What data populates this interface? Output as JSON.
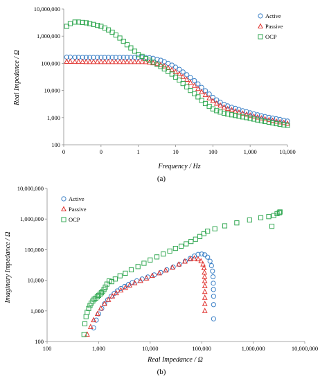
{
  "figure": {
    "caption_a": "(a)",
    "caption_b": "(b)"
  },
  "series_styles": [
    {
      "name": "Active",
      "marker": "circle",
      "color": "#3a7fc6"
    },
    {
      "name": "Passive",
      "marker": "triangle",
      "color": "#e0322e"
    },
    {
      "name": "OCP",
      "marker": "square",
      "color": "#33a853"
    }
  ],
  "chart_data": [
    {
      "type": "scatter",
      "xlabel": "Frequency / Hz",
      "ylabel": "Real Impedance / Ω",
      "x_scale": "log",
      "y_scale": "log",
      "xlim": [
        0.01,
        10000
      ],
      "ylim": [
        100,
        10000000
      ],
      "x_ticks": [
        "0",
        "0",
        "1",
        "10",
        "100",
        "1,000",
        "10,000"
      ],
      "y_ticks": [
        "100",
        "1,000",
        "10,000",
        "100,000",
        "1,000,000",
        "10,000,000"
      ],
      "legend_position": "top-right",
      "grid": false,
      "series": [
        {
          "name": "Active",
          "x": [
            0.012,
            0.015,
            0.02,
            0.025,
            0.032,
            0.04,
            0.05,
            0.063,
            0.08,
            0.1,
            0.126,
            0.158,
            0.2,
            0.25,
            0.32,
            0.4,
            0.5,
            0.63,
            0.8,
            1.0,
            1.26,
            1.58,
            2,
            2.5,
            3.2,
            4,
            5,
            6.3,
            8,
            10,
            12.6,
            15.8,
            20,
            25,
            32,
            40,
            50,
            63,
            80,
            100,
            126,
            158,
            200,
            250,
            320,
            400,
            500,
            630,
            800,
            1000,
            1260,
            1580,
            2000,
            2500,
            3200,
            4000,
            5000,
            6300,
            8000,
            10000
          ],
          "y": [
            170000,
            170000,
            168000,
            168000,
            167000,
            167000,
            166000,
            166000,
            166000,
            166000,
            166000,
            166000,
            166000,
            166000,
            166000,
            166000,
            166000,
            166000,
            166000,
            166000,
            166000,
            165000,
            160000,
            152000,
            142000,
            130000,
            115000,
            100000,
            86000,
            72000,
            60000,
            48000,
            38000,
            30000,
            23000,
            17500,
            13000,
            9800,
            7400,
            5600,
            4500,
            3700,
            3100,
            2700,
            2400,
            2200,
            2000,
            1800,
            1650,
            1500,
            1380,
            1270,
            1180,
            1100,
            1030,
            970,
            910,
            860,
            800,
            750
          ]
        },
        {
          "name": "Passive",
          "x": [
            0.012,
            0.015,
            0.02,
            0.025,
            0.032,
            0.04,
            0.05,
            0.063,
            0.08,
            0.1,
            0.126,
            0.158,
            0.2,
            0.25,
            0.32,
            0.4,
            0.5,
            0.63,
            0.8,
            1.0,
            1.26,
            1.58,
            2,
            2.5,
            3.2,
            4,
            5,
            6.3,
            8,
            10,
            12.6,
            15.8,
            20,
            25,
            32,
            40,
            50,
            63,
            80,
            100,
            126,
            158,
            200,
            250,
            320,
            400,
            500,
            630,
            800,
            1000,
            1260,
            1580,
            2000,
            2500,
            3200,
            4000,
            5000,
            6300,
            8000,
            10000
          ],
          "y": [
            115000,
            115000,
            114000,
            114000,
            114000,
            113000,
            113000,
            113000,
            113000,
            113000,
            113000,
            113000,
            113000,
            113000,
            113000,
            113000,
            113000,
            113000,
            113000,
            113000,
            113000,
            112000,
            108000,
            102000,
            95000,
            87000,
            78000,
            68000,
            58000,
            48000,
            40000,
            32000,
            25000,
            19500,
            15000,
            11500,
            8800,
            6800,
            5200,
            4100,
            3300,
            2800,
            2400,
            2100,
            1900,
            1700,
            1550,
            1420,
            1300,
            1200,
            1100,
            1020,
            950,
            880,
            820,
            770,
            720,
            680,
            640,
            600
          ]
        },
        {
          "name": "OCP",
          "x": [
            0.012,
            0.015,
            0.02,
            0.025,
            0.032,
            0.04,
            0.05,
            0.063,
            0.08,
            0.1,
            0.126,
            0.158,
            0.2,
            0.25,
            0.32,
            0.4,
            0.5,
            0.63,
            0.8,
            1.0,
            1.26,
            1.58,
            2,
            2.5,
            3.2,
            4,
            5,
            6.3,
            8,
            10,
            12.6,
            15.8,
            20,
            25,
            32,
            40,
            50,
            63,
            80,
            100,
            126,
            158,
            200,
            250,
            320,
            400,
            500,
            630,
            800,
            1000,
            1260,
            1580,
            2000,
            2500,
            3200,
            4000,
            5000,
            6300,
            8000,
            10000
          ],
          "y": [
            2300000,
            2900000,
            3300000,
            3300000,
            3200000,
            3100000,
            2900000,
            2700000,
            2500000,
            2300000,
            2000000,
            1700000,
            1400000,
            1100000,
            850000,
            650000,
            480000,
            370000,
            280000,
            210000,
            180000,
            150000,
            130000,
            110000,
            92000,
            76000,
            62000,
            50000,
            40000,
            31000,
            24000,
            18000,
            13500,
            10000,
            7600,
            5800,
            4300,
            3300,
            2600,
            2100,
            1800,
            1600,
            1450,
            1350,
            1270,
            1200,
            1130,
            1060,
            1000,
            940,
            880,
            820,
            770,
            720,
            680,
            640,
            600,
            570,
            540,
            520
          ]
        }
      ]
    },
    {
      "type": "scatter",
      "xlabel": "Real Impedance / Ω",
      "ylabel": "Imaginary Impedance / Ω",
      "x_scale": "log",
      "y_scale": "log",
      "xlim": [
        100,
        10000000
      ],
      "ylim": [
        100,
        10000000
      ],
      "x_ticks": [
        "100",
        "1,000",
        "10,000",
        "100,000",
        "1,000,000",
        "10,000,000"
      ],
      "y_ticks": [
        "100",
        "1,000",
        "10,000",
        "100,000",
        "1,000,000",
        "10,000,000"
      ],
      "legend_position": "top-left",
      "grid": false,
      "series": [
        {
          "name": "Active",
          "x": [
            800,
            900,
            1000,
            1150,
            1300,
            1500,
            1750,
            2000,
            2300,
            2700,
            3200,
            3800,
            4500,
            5500,
            7000,
            9000,
            12000,
            16000,
            21000,
            28000,
            37000,
            48000,
            60000,
            72000,
            85000,
            100000,
            115000,
            130000,
            145000,
            155000,
            162000,
            166000,
            168000,
            169000,
            170000,
            170000,
            170000
          ],
          "y": [
            280,
            500,
            800,
            1200,
            1700,
            2300,
            3000,
            3700,
            4500,
            5400,
            6300,
            7300,
            8400,
            9600,
            11000,
            12800,
            15000,
            18000,
            22000,
            27000,
            33000,
            42000,
            52000,
            62000,
            70000,
            72000,
            68000,
            57000,
            42000,
            30000,
            20000,
            13000,
            8000,
            5000,
            3000,
            1600,
            550
          ]
        },
        {
          "name": "Passive",
          "x": [
            600,
            700,
            800,
            950,
            1100,
            1300,
            1550,
            1850,
            2200,
            2700,
            3300,
            4000,
            5000,
            6500,
            8500,
            11000,
            15000,
            20000,
            27000,
            36000,
            47000,
            60000,
            72000,
            85000,
            97000,
            106000,
            111000,
            113000,
            114000,
            114500,
            115000,
            115000,
            115000,
            115000,
            115000
          ],
          "y": [
            170,
            300,
            500,
            800,
            1200,
            1700,
            2300,
            3000,
            3800,
            4700,
            5700,
            6800,
            8100,
            9600,
            11500,
            14000,
            17000,
            21000,
            26000,
            33000,
            41000,
            49000,
            52000,
            49000,
            42000,
            33000,
            25000,
            18000,
            13000,
            9500,
            6500,
            4200,
            2700,
            1700,
            1000
          ]
        },
        {
          "name": "OCP",
          "x": [
            520,
            540,
            570,
            600,
            640,
            680,
            720,
            770,
            820,
            880,
            940,
            1000,
            1060,
            1130,
            1200,
            1270,
            1350,
            1450,
            1600,
            1800,
            2100,
            2600,
            3300,
            4300,
            5800,
            7600,
            10000,
            13500,
            18000,
            24000,
            31000,
            40000,
            50000,
            62000,
            76000,
            92000,
            110000,
            130000,
            180000,
            280000,
            480000,
            850000,
            1400000,
            2000000,
            2500000,
            2900000,
            3200000,
            3300000,
            3300000,
            2300000
          ],
          "y": [
            170,
            380,
            650,
            900,
            1200,
            1500,
            1800,
            2100,
            2400,
            2600,
            2900,
            3200,
            3500,
            3900,
            4300,
            5000,
            6000,
            7500,
            9500,
            9000,
            11000,
            14000,
            17000,
            22000,
            28000,
            36000,
            46000,
            58000,
            72000,
            90000,
            110000,
            130000,
            155000,
            185000,
            220000,
            270000,
            330000,
            400000,
            480000,
            600000,
            750000,
            930000,
            1100000,
            1200000,
            1300000,
            1500000,
            1600000,
            1700000,
            1700000,
            580000
          ]
        }
      ]
    }
  ]
}
